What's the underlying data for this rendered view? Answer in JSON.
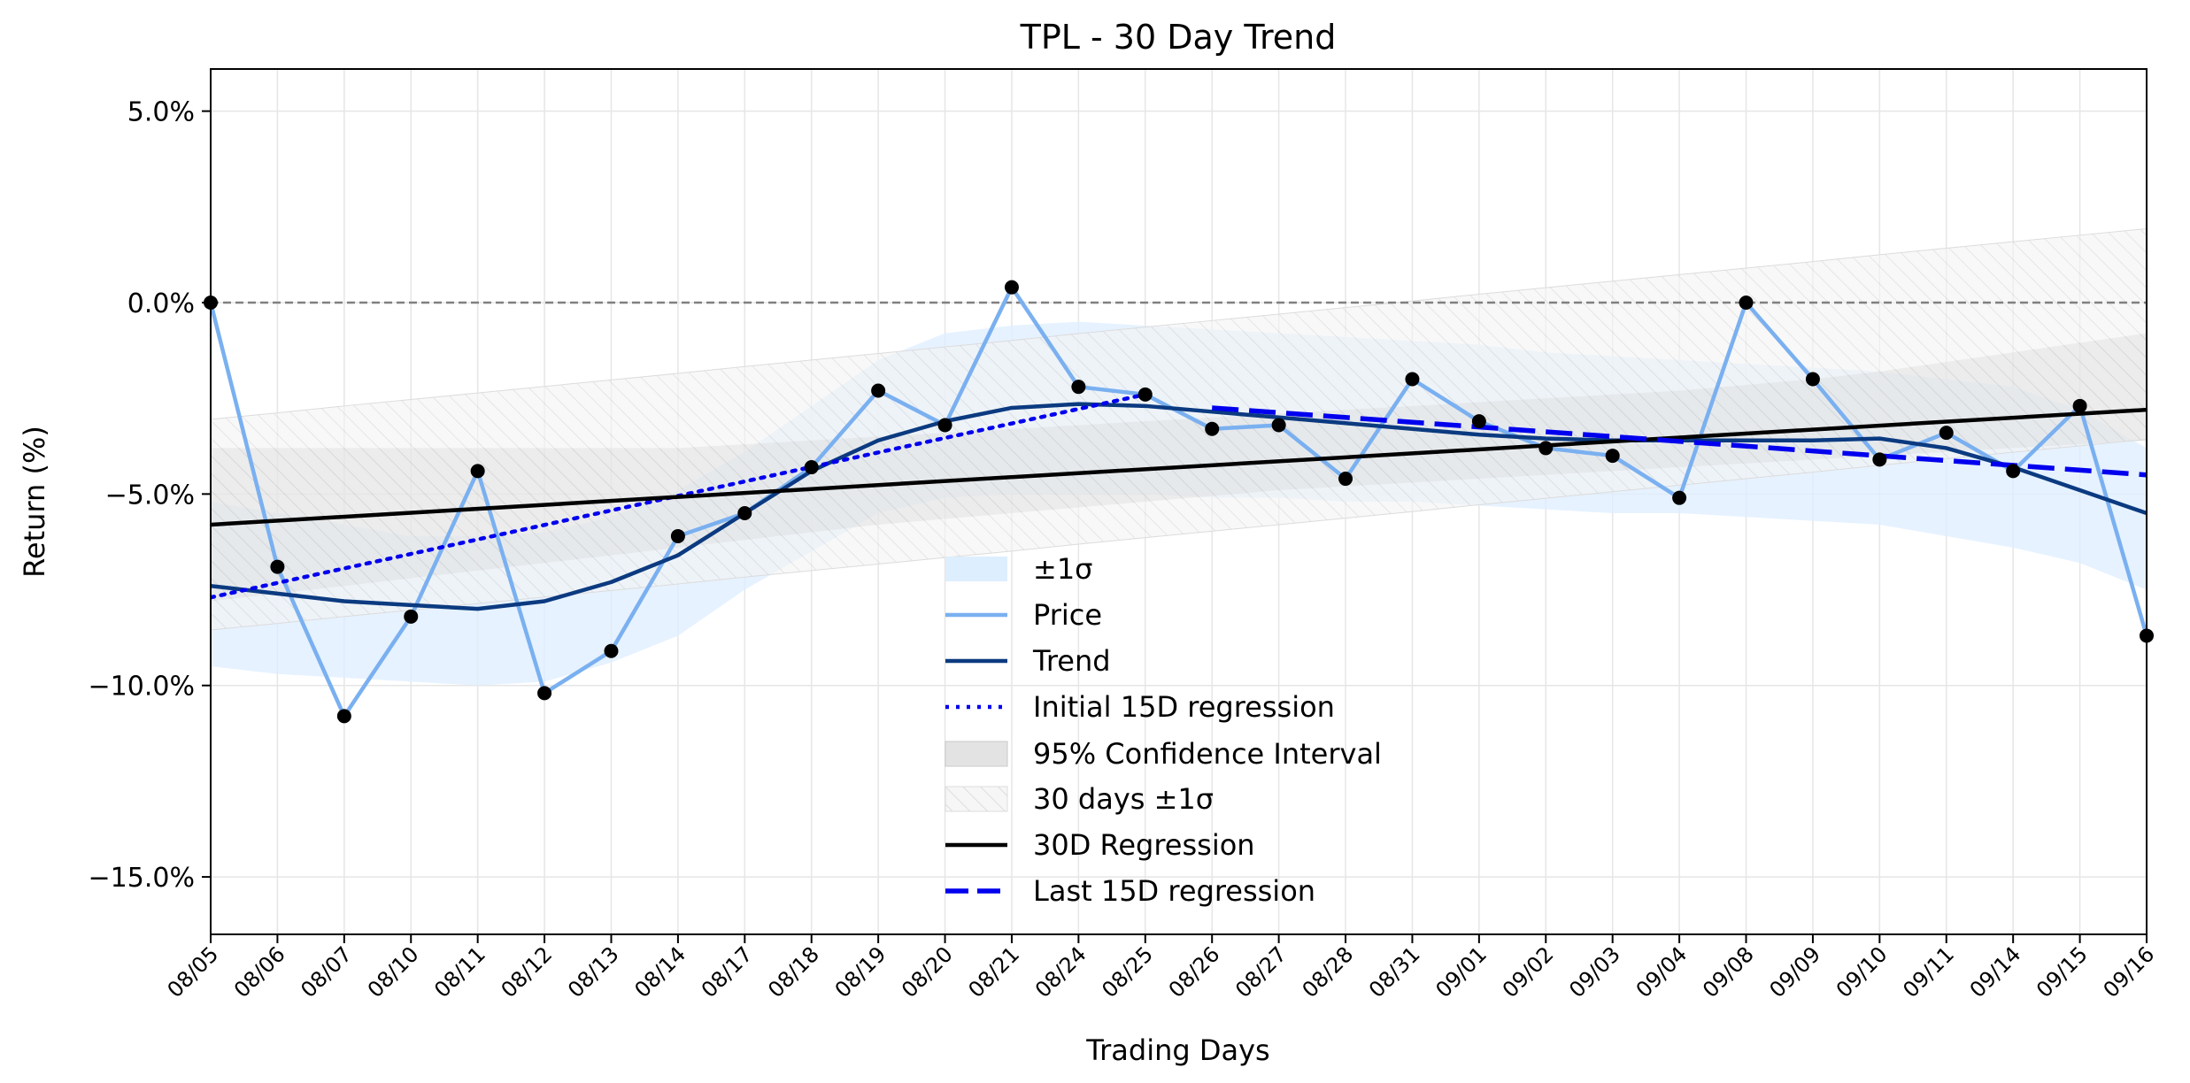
{
  "chart_data": {
    "type": "line",
    "title": "TPL - 30 Day Trend",
    "xlabel": "Trading Days",
    "ylabel": "Return (%)",
    "ylim": [
      -16.5,
      6.1
    ],
    "yticks": [
      5.0,
      0.0,
      -5.0,
      -10.0,
      -15.0
    ],
    "ytick_labels": [
      "5.0%",
      "0.0%",
      "−5.0%",
      "−10.0%",
      "−15.0%"
    ],
    "grid": true,
    "legend_position": "lower center",
    "categories": [
      "08/05",
      "08/06",
      "08/07",
      "08/10",
      "08/11",
      "08/12",
      "08/13",
      "08/14",
      "08/17",
      "08/18",
      "08/19",
      "08/20",
      "08/21",
      "08/24",
      "08/25",
      "08/26",
      "08/27",
      "08/28",
      "08/31",
      "09/01",
      "09/02",
      "09/03",
      "09/04",
      "09/08",
      "09/09",
      "09/10",
      "09/11",
      "09/14",
      "09/15",
      "09/16"
    ],
    "reference_line": 0.0,
    "series": [
      {
        "name": "±1σ",
        "kind": "band",
        "color": "#ddeeff",
        "lower": [
          -9.5,
          -9.7,
          -9.8,
          -9.9,
          -10.0,
          -9.9,
          -9.4,
          -8.7,
          -7.5,
          -6.5,
          -5.5,
          -5.1,
          -5.0,
          -5.0,
          -5.0,
          -5.1,
          -5.1,
          -5.2,
          -5.2,
          -5.3,
          -5.4,
          -5.5,
          -5.5,
          -5.6,
          -5.7,
          -5.8,
          -6.1,
          -6.4,
          -6.8,
          -7.5
        ],
        "upper": [
          -5.2,
          -5.5,
          -5.8,
          -6.1,
          -6.1,
          -6.0,
          -5.6,
          -4.9,
          -3.9,
          -2.7,
          -1.5,
          -0.8,
          -0.6,
          -0.5,
          -0.6,
          -0.7,
          -0.8,
          -0.9,
          -1.0,
          -1.1,
          -1.3,
          -1.4,
          -1.5,
          -1.6,
          -1.7,
          -1.8,
          -2.0,
          -2.2,
          -2.8,
          -3.8
        ]
      },
      {
        "name": "Price",
        "kind": "line",
        "color": "#7ab0f0",
        "values": [
          0.0,
          -6.9,
          -10.8,
          -8.2,
          -4.4,
          -10.2,
          -9.1,
          -6.1,
          -5.5,
          -4.3,
          -2.3,
          -3.2,
          0.4,
          -2.2,
          -2.4,
          -3.3,
          -3.2,
          -4.6,
          -2.0,
          -3.1,
          -3.8,
          -4.0,
          -5.1,
          0.0,
          -2.0,
          -4.1,
          -3.4,
          -4.4,
          -2.7,
          -8.7
        ]
      },
      {
        "name": "Trend",
        "kind": "line",
        "color": "#0b3a80",
        "values": [
          -7.4,
          -7.6,
          -7.8,
          -7.9,
          -8.0,
          -7.8,
          -7.3,
          -6.6,
          -5.5,
          -4.4,
          -3.6,
          -3.1,
          -2.75,
          -2.65,
          -2.7,
          -2.85,
          -3.0,
          -3.15,
          -3.3,
          -3.45,
          -3.55,
          -3.6,
          -3.6,
          -3.6,
          -3.6,
          -3.55,
          -3.8,
          -4.3,
          -4.9,
          -5.5
        ]
      },
      {
        "name": "Initial 15D regression",
        "kind": "line",
        "style": "dotted",
        "color": "#0000ee",
        "x_range": [
          "08/05",
          "08/25"
        ],
        "y_range": [
          -7.7,
          -2.4
        ]
      },
      {
        "name": "95% Confidence Interval",
        "kind": "band",
        "color": "#d0d0d0",
        "lower": [
          -7.8,
          -7.6,
          -7.4,
          -7.2,
          -7.0,
          -6.8,
          -6.6,
          -6.4,
          -6.2,
          -6.0,
          -5.8,
          -5.65,
          -5.5,
          -5.35,
          -5.2,
          -5.05,
          -4.9,
          -4.8,
          -4.7,
          -4.6,
          -4.5,
          -4.4,
          -4.3,
          -4.2,
          -4.1,
          -4.0,
          -3.9,
          -3.8,
          -3.7,
          -3.6
        ],
        "upper": [
          -3.8,
          -3.8,
          -3.8,
          -3.8,
          -3.8,
          -3.8,
          -3.8,
          -3.8,
          -3.7,
          -3.6,
          -3.5,
          -3.4,
          -3.3,
          -3.2,
          -3.1,
          -3.0,
          -2.9,
          -2.8,
          -2.7,
          -2.6,
          -2.5,
          -2.4,
          -2.3,
          -2.15,
          -2.0,
          -1.8,
          -1.55,
          -1.3,
          -1.05,
          -0.8
        ]
      },
      {
        "name": "30 days ±1σ",
        "kind": "band",
        "style": "hatched",
        "color": "#e8e8e8",
        "lower": [
          -8.55,
          -8.38,
          -8.2,
          -8.03,
          -7.86,
          -7.69,
          -7.52,
          -7.35,
          -7.17,
          -7.0,
          -6.83,
          -6.66,
          -6.49,
          -6.31,
          -6.14,
          -5.97,
          -5.8,
          -5.63,
          -5.46,
          -5.28,
          -5.11,
          -4.94,
          -4.77,
          -4.6,
          -4.43,
          -4.25,
          -4.08,
          -3.91,
          -3.74,
          -3.57
        ],
        "upper": [
          -3.05,
          -2.88,
          -2.7,
          -2.53,
          -2.36,
          -2.19,
          -2.02,
          -1.85,
          -1.67,
          -1.5,
          -1.33,
          -1.16,
          -0.99,
          -0.81,
          -0.64,
          -0.47,
          -0.3,
          -0.13,
          0.04,
          0.22,
          0.39,
          0.56,
          0.73,
          0.9,
          1.07,
          1.25,
          1.42,
          1.59,
          1.76,
          1.93
        ]
      },
      {
        "name": "30D Regression",
        "kind": "line",
        "color": "#000000",
        "x_range": [
          "08/05",
          "09/16"
        ],
        "y_range": [
          -5.8,
          -2.8
        ]
      },
      {
        "name": "Last 15D regression",
        "kind": "line",
        "style": "dashed",
        "color": "#0000ee",
        "x_range": [
          "08/26",
          "09/16"
        ],
        "y_range": [
          -2.75,
          -4.5
        ]
      }
    ]
  },
  "colors": {
    "band_sigma": "#ddeeff",
    "price": "#7ab0f0",
    "trend": "#0b3a80",
    "regression_blue": "#0000ee",
    "ci_gray": "#d0d0d0",
    "grid": "#e6e6e6",
    "zero_line": "#808080",
    "marker": "#000000"
  }
}
